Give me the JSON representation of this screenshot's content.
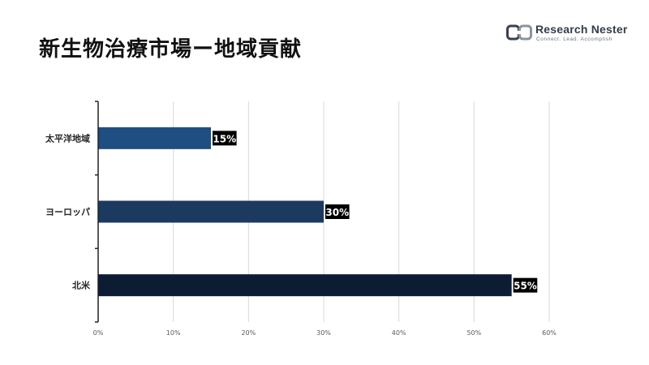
{
  "header": {
    "title": "新生物治療市場ー地域貢献"
  },
  "logo": {
    "name": "Research Nester",
    "tagline": "Connect. Lead. Accomplish",
    "colors": {
      "text": "#333d4a",
      "mark": "#3a4250"
    }
  },
  "chart_data": {
    "type": "bar",
    "orientation": "horizontal",
    "categories": [
      "太平洋地域",
      "ヨーロッパ",
      "北米"
    ],
    "values": [
      15,
      30,
      55
    ],
    "value_labels": [
      "15%",
      "30%",
      "55%"
    ],
    "bar_colors": [
      "#1f4e82",
      "#1c3a60",
      "#0c1d33"
    ],
    "xlim": [
      0,
      60
    ],
    "xticks": [
      0,
      10,
      20,
      30,
      40,
      50,
      60
    ],
    "xtick_labels": [
      "0%",
      "10%",
      "20%",
      "30%",
      "40%",
      "50%",
      "60%"
    ],
    "grid": "vertical",
    "legend": "none"
  }
}
